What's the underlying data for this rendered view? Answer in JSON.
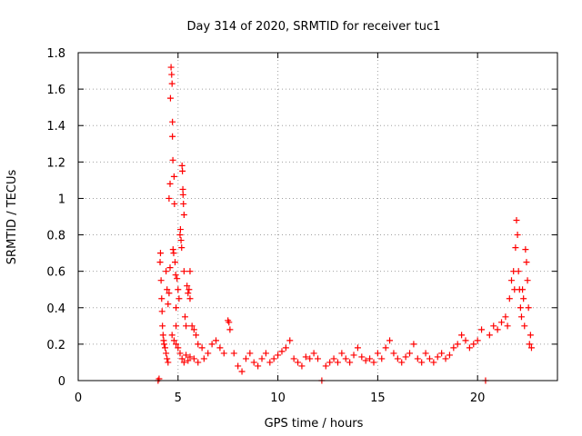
{
  "chart_data": {
    "type": "scatter",
    "title": "Day 314 of 2020, SRMTID for receiver tuc1",
    "xlabel": "GPS time / hours",
    "ylabel": "SRMTID / TECUs",
    "xlim": [
      0,
      24
    ],
    "ylim": [
      0,
      1.8
    ],
    "xticks": [
      "0",
      "5",
      "10",
      "15",
      "20"
    ],
    "yticks": [
      "0",
      "0.2",
      "0.4",
      "0.6",
      "0.8",
      "1",
      "1.2",
      "1.4",
      "1.6",
      "1.8"
    ],
    "grid": true,
    "marker": "plus",
    "series": [
      {
        "name": "SRMTID",
        "color": "#ff0000",
        "points": [
          [
            4.0,
            0.0
          ],
          [
            4.05,
            0.01
          ],
          [
            4.1,
            0.65
          ],
          [
            4.12,
            0.7
          ],
          [
            4.15,
            0.55
          ],
          [
            4.18,
            0.45
          ],
          [
            4.2,
            0.38
          ],
          [
            4.22,
            0.3
          ],
          [
            4.25,
            0.25
          ],
          [
            4.28,
            0.22
          ],
          [
            4.3,
            0.2
          ],
          [
            4.35,
            0.18
          ],
          [
            4.4,
            0.15
          ],
          [
            4.45,
            0.12
          ],
          [
            4.5,
            0.1
          ],
          [
            4.4,
            0.6
          ],
          [
            4.45,
            0.5
          ],
          [
            4.5,
            0.42
          ],
          [
            4.55,
            0.48
          ],
          [
            4.55,
            1.0
          ],
          [
            4.6,
            1.08
          ],
          [
            4.6,
            0.62
          ],
          [
            4.62,
            1.55
          ],
          [
            4.65,
            1.72
          ],
          [
            4.68,
            1.68
          ],
          [
            4.7,
            1.63
          ],
          [
            4.72,
            1.42
          ],
          [
            4.72,
            1.34
          ],
          [
            4.74,
            1.21
          ],
          [
            4.75,
            0.72
          ],
          [
            4.78,
            0.7
          ],
          [
            4.8,
            1.12
          ],
          [
            4.82,
            0.97
          ],
          [
            4.85,
            0.65
          ],
          [
            4.88,
            0.58
          ],
          [
            4.9,
            0.4
          ],
          [
            4.9,
            0.3
          ],
          [
            4.95,
            0.56
          ],
          [
            5.0,
            0.5
          ],
          [
            5.05,
            0.45
          ],
          [
            5.1,
            0.8
          ],
          [
            5.12,
            0.83
          ],
          [
            5.15,
            0.77
          ],
          [
            5.18,
            0.73
          ],
          [
            5.2,
            1.18
          ],
          [
            5.22,
            1.15
          ],
          [
            5.24,
            1.05
          ],
          [
            5.25,
            1.02
          ],
          [
            5.27,
            0.97
          ],
          [
            5.3,
            0.91
          ],
          [
            5.3,
            0.6
          ],
          [
            5.35,
            0.35
          ],
          [
            5.4,
            0.3
          ],
          [
            5.45,
            0.52
          ],
          [
            5.5,
            0.48
          ],
          [
            5.55,
            0.5
          ],
          [
            5.6,
            0.45
          ],
          [
            5.6,
            0.6
          ],
          [
            5.7,
            0.3
          ],
          [
            5.8,
            0.28
          ],
          [
            5.9,
            0.25
          ],
          [
            6.0,
            0.2
          ],
          [
            6.2,
            0.18
          ],
          [
            4.7,
            0.25
          ],
          [
            4.8,
            0.22
          ],
          [
            4.9,
            0.2
          ],
          [
            5.0,
            0.18
          ],
          [
            5.1,
            0.15
          ],
          [
            5.2,
            0.12
          ],
          [
            5.3,
            0.1
          ],
          [
            5.4,
            0.14
          ],
          [
            5.5,
            0.11
          ],
          [
            5.6,
            0.13
          ],
          [
            5.8,
            0.12
          ],
          [
            6.0,
            0.1
          ],
          [
            6.3,
            0.12
          ],
          [
            6.5,
            0.15
          ],
          [
            6.7,
            0.2
          ],
          [
            6.9,
            0.22
          ],
          [
            7.1,
            0.18
          ],
          [
            7.3,
            0.15
          ],
          [
            7.5,
            0.33
          ],
          [
            7.55,
            0.32
          ],
          [
            7.6,
            0.28
          ],
          [
            7.8,
            0.15
          ],
          [
            8.0,
            0.08
          ],
          [
            8.2,
            0.05
          ],
          [
            8.4,
            0.12
          ],
          [
            8.6,
            0.15
          ],
          [
            8.8,
            0.1
          ],
          [
            9.0,
            0.08
          ],
          [
            9.2,
            0.12
          ],
          [
            9.4,
            0.15
          ],
          [
            9.6,
            0.1
          ],
          [
            9.8,
            0.12
          ],
          [
            10.0,
            0.14
          ],
          [
            10.2,
            0.16
          ],
          [
            10.4,
            0.18
          ],
          [
            10.6,
            0.22
          ],
          [
            10.8,
            0.12
          ],
          [
            11.0,
            0.1
          ],
          [
            11.2,
            0.08
          ],
          [
            11.4,
            0.13
          ],
          [
            11.6,
            0.12
          ],
          [
            11.8,
            0.15
          ],
          [
            12.0,
            0.12
          ],
          [
            12.2,
            0.0
          ],
          [
            12.4,
            0.08
          ],
          [
            12.6,
            0.1
          ],
          [
            12.8,
            0.12
          ],
          [
            13.0,
            0.1
          ],
          [
            13.2,
            0.15
          ],
          [
            13.4,
            0.12
          ],
          [
            13.6,
            0.1
          ],
          [
            13.8,
            0.14
          ],
          [
            14.0,
            0.18
          ],
          [
            14.2,
            0.13
          ],
          [
            14.4,
            0.11
          ],
          [
            14.6,
            0.12
          ],
          [
            14.8,
            0.1
          ],
          [
            15.0,
            0.15
          ],
          [
            15.2,
            0.12
          ],
          [
            15.4,
            0.18
          ],
          [
            15.6,
            0.22
          ],
          [
            15.8,
            0.15
          ],
          [
            16.0,
            0.12
          ],
          [
            16.2,
            0.1
          ],
          [
            16.4,
            0.13
          ],
          [
            16.6,
            0.15
          ],
          [
            16.8,
            0.2
          ],
          [
            17.0,
            0.12
          ],
          [
            17.2,
            0.1
          ],
          [
            17.4,
            0.15
          ],
          [
            17.6,
            0.12
          ],
          [
            17.8,
            0.1
          ],
          [
            18.0,
            0.13
          ],
          [
            18.2,
            0.15
          ],
          [
            18.4,
            0.12
          ],
          [
            18.6,
            0.14
          ],
          [
            18.8,
            0.18
          ],
          [
            19.0,
            0.2
          ],
          [
            19.2,
            0.25
          ],
          [
            19.4,
            0.22
          ],
          [
            19.6,
            0.18
          ],
          [
            19.8,
            0.2
          ],
          [
            20.0,
            0.22
          ],
          [
            20.2,
            0.28
          ],
          [
            20.4,
            0.0
          ],
          [
            20.6,
            0.25
          ],
          [
            20.8,
            0.3
          ],
          [
            21.0,
            0.28
          ],
          [
            21.2,
            0.32
          ],
          [
            21.4,
            0.35
          ],
          [
            21.5,
            0.3
          ],
          [
            21.6,
            0.45
          ],
          [
            21.7,
            0.55
          ],
          [
            21.8,
            0.6
          ],
          [
            21.85,
            0.5
          ],
          [
            21.9,
            0.73
          ],
          [
            21.95,
            0.88
          ],
          [
            22.0,
            0.8
          ],
          [
            22.05,
            0.6
          ],
          [
            22.1,
            0.5
          ],
          [
            22.15,
            0.4
          ],
          [
            22.2,
            0.35
          ],
          [
            22.25,
            0.5
          ],
          [
            22.3,
            0.45
          ],
          [
            22.35,
            0.3
          ],
          [
            22.4,
            0.72
          ],
          [
            22.45,
            0.65
          ],
          [
            22.5,
            0.55
          ],
          [
            22.55,
            0.4
          ],
          [
            22.6,
            0.2
          ],
          [
            22.65,
            0.25
          ],
          [
            22.7,
            0.18
          ]
        ]
      }
    ]
  }
}
